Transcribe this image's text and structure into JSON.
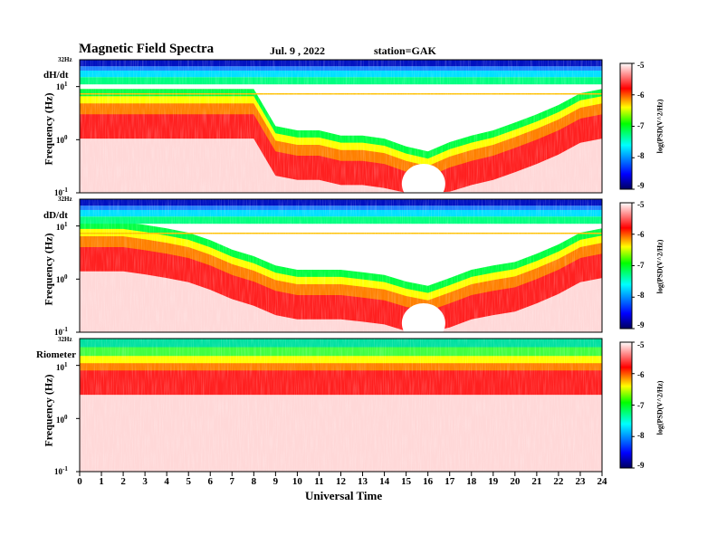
{
  "header": {
    "title": "Magnetic  Field  Spectra",
    "date": "Jul.  9  , 2022",
    "station": "station=GAK"
  },
  "xaxis": {
    "label": "Universal  Time",
    "ticks": [
      "0",
      "1",
      "2",
      "3",
      "4",
      "5",
      "6",
      "7",
      "8",
      "9",
      "10",
      "11",
      "12",
      "13",
      "14",
      "15",
      "16",
      "17",
      "18",
      "19",
      "20",
      "21",
      "22",
      "23",
      "24"
    ]
  },
  "panels": [
    {
      "label": "dH/dt",
      "ylabel": "Frequency  (Hz)",
      "top_freq": "32Hz",
      "yticks": [
        {
          "base": "10",
          "exp": "1"
        },
        {
          "base": "10",
          "exp": "0"
        },
        {
          "base": "10",
          "exp": "-1"
        }
      ],
      "cbar_label": "log(PSD(V^2/Hz)",
      "cbar_ticks": [
        "-5",
        "-6",
        "-7",
        "-8",
        "-9"
      ]
    },
    {
      "label": "dD/dt",
      "ylabel": "Frequency  (Hz)",
      "top_freq": "32Hz",
      "yticks": [
        {
          "base": "10",
          "exp": "1"
        },
        {
          "base": "10",
          "exp": "0"
        },
        {
          "base": "10",
          "exp": "-1"
        }
      ],
      "cbar_label": "log(PSD(V^2/Hz)",
      "cbar_ticks": [
        "-5",
        "-6",
        "-7",
        "-8",
        "-9"
      ]
    },
    {
      "label": "Riometer",
      "ylabel": "Frequency  (Hz)",
      "top_freq": "32Hz",
      "yticks": [
        {
          "base": "10",
          "exp": "1"
        },
        {
          "base": "10",
          "exp": "0"
        },
        {
          "base": "10",
          "exp": "-1"
        }
      ],
      "cbar_label": "log(PSD(V^2/Hz)",
      "cbar_ticks": [
        "-5",
        "-6",
        "-7",
        "-8",
        "-9"
      ]
    }
  ],
  "colors": {
    "colormap": [
      "#000060",
      "#0000ff",
      "#00ffff",
      "#00ff00",
      "#ffff00",
      "#ff0000",
      "#ffffff"
    ]
  },
  "chart_data": [
    {
      "type": "heatmap",
      "title": "dH/dt",
      "xlabel": "Universal  Time",
      "ylabel": "Frequency  (Hz)",
      "xlim": [
        0,
        24
      ],
      "ylim": [
        0.1,
        32
      ],
      "yscale": "log",
      "colorbar_label": "log(PSD(V^2/Hz)",
      "colorbar_range": [
        -9,
        -5
      ],
      "x": [
        0,
        1,
        2,
        3,
        4,
        5,
        6,
        7,
        8,
        9,
        10,
        11,
        12,
        13,
        14,
        15,
        16,
        17,
        18,
        19,
        20,
        21,
        22,
        23,
        24
      ],
      "red_upper_edge_hz": [
        3,
        3,
        3,
        3,
        3,
        3,
        3,
        3,
        3,
        0.6,
        0.5,
        0.5,
        0.4,
        0.4,
        0.35,
        0.25,
        0.2,
        0.3,
        0.4,
        0.5,
        0.7,
        1,
        1.5,
        2.5,
        3
      ]
    },
    {
      "type": "heatmap",
      "title": "dD/dt",
      "xlabel": "Universal  Time",
      "ylabel": "Frequency  (Hz)",
      "xlim": [
        0,
        24
      ],
      "ylim": [
        0.1,
        32
      ],
      "yscale": "log",
      "colorbar_label": "log(PSD(V^2/Hz)",
      "colorbar_range": [
        -9,
        -5
      ],
      "x": [
        0,
        1,
        2,
        3,
        4,
        5,
        6,
        7,
        8,
        9,
        10,
        11,
        12,
        13,
        14,
        15,
        16,
        17,
        18,
        19,
        20,
        21,
        22,
        23,
        24
      ],
      "red_upper_edge_hz": [
        4,
        4,
        4,
        3.5,
        3,
        2.5,
        1.8,
        1.2,
        0.9,
        0.6,
        0.5,
        0.5,
        0.5,
        0.45,
        0.4,
        0.3,
        0.25,
        0.35,
        0.5,
        0.6,
        0.7,
        1,
        1.5,
        2.5,
        3
      ]
    },
    {
      "type": "heatmap",
      "title": "Riometer",
      "xlabel": "Universal  Time",
      "ylabel": "Frequency  (Hz)",
      "xlim": [
        0,
        24
      ],
      "ylim": [
        0.1,
        32
      ],
      "yscale": "log",
      "colorbar_label": "log(PSD(V^2/Hz)",
      "colorbar_range": [
        -9,
        -5
      ],
      "x": [
        0,
        1,
        2,
        3,
        4,
        5,
        6,
        7,
        8,
        9,
        10,
        11,
        12,
        13,
        14,
        15,
        16,
        17,
        18,
        19,
        20,
        21,
        22,
        23,
        24
      ],
      "red_upper_edge_hz": [
        8,
        8,
        8,
        8,
        8,
        8,
        8,
        8,
        8,
        8,
        8,
        8,
        8,
        8,
        8,
        8,
        8,
        8,
        8,
        8,
        8,
        8,
        8,
        8,
        8
      ]
    }
  ]
}
